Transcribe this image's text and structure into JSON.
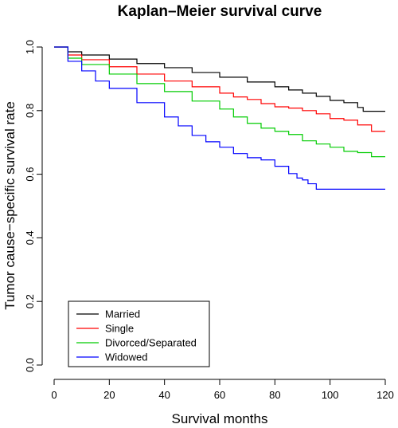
{
  "chart_data": {
    "type": "line",
    "title": "Kaplan–Meier survival curve",
    "xlabel": "Survival months",
    "ylabel": "Tumor cause−specific survival rate",
    "xlim": [
      0,
      120
    ],
    "ylim": [
      0,
      1
    ],
    "xticks": [
      "0",
      "20",
      "40",
      "60",
      "80",
      "100",
      "120"
    ],
    "yticks": [
      "0.0",
      "0.2",
      "0.4",
      "0.6",
      "0.8",
      "1.0"
    ],
    "grid": false,
    "legend_position": "bottom-left",
    "series": [
      {
        "name": "Married",
        "color": "#000000",
        "x": [
          0,
          5,
          10,
          20,
          30,
          40,
          50,
          60,
          70,
          80,
          85,
          90,
          95,
          100,
          105,
          110,
          112,
          120
        ],
        "y": [
          1.0,
          0.985,
          0.975,
          0.962,
          0.948,
          0.935,
          0.92,
          0.905,
          0.89,
          0.875,
          0.865,
          0.855,
          0.845,
          0.832,
          0.825,
          0.81,
          0.798,
          0.798
        ]
      },
      {
        "name": "Single",
        "color": "#ff0000",
        "x": [
          0,
          5,
          10,
          20,
          30,
          40,
          50,
          60,
          65,
          70,
          75,
          80,
          85,
          90,
          95,
          100,
          105,
          110,
          115,
          120
        ],
        "y": [
          1.0,
          0.975,
          0.96,
          0.938,
          0.915,
          0.893,
          0.875,
          0.855,
          0.843,
          0.835,
          0.822,
          0.812,
          0.808,
          0.8,
          0.79,
          0.775,
          0.77,
          0.755,
          0.735,
          0.735
        ]
      },
      {
        "name": "Divorced/Separated",
        "color": "#00cc00",
        "x": [
          0,
          5,
          10,
          20,
          30,
          40,
          50,
          60,
          65,
          70,
          75,
          80,
          85,
          90,
          95,
          100,
          105,
          110,
          115,
          120
        ],
        "y": [
          1.0,
          0.965,
          0.945,
          0.915,
          0.885,
          0.86,
          0.83,
          0.805,
          0.78,
          0.76,
          0.745,
          0.735,
          0.725,
          0.705,
          0.695,
          0.685,
          0.672,
          0.668,
          0.655,
          0.655
        ]
      },
      {
        "name": "Widowed",
        "color": "#0000ff",
        "x": [
          0,
          5,
          10,
          15,
          20,
          30,
          40,
          45,
          50,
          55,
          60,
          65,
          70,
          75,
          80,
          85,
          88,
          90,
          92,
          95,
          120
        ],
        "y": [
          1.0,
          0.955,
          0.925,
          0.893,
          0.87,
          0.825,
          0.78,
          0.752,
          0.722,
          0.702,
          0.685,
          0.665,
          0.652,
          0.645,
          0.625,
          0.602,
          0.588,
          0.582,
          0.57,
          0.553,
          0.553
        ]
      }
    ]
  }
}
